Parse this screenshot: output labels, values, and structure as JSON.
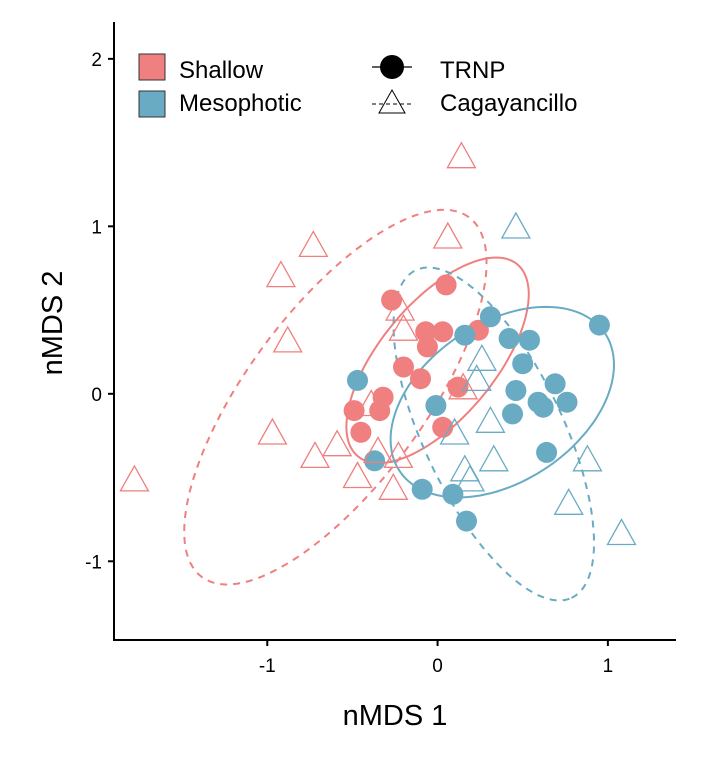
{
  "chart_data": {
    "type": "scatter",
    "title": "",
    "xlabel": "nMDS 1",
    "ylabel": "nMDS 2",
    "xlim": [
      -1.9,
      1.4
    ],
    "ylim": [
      -1.47,
      2.22
    ],
    "x_ticks": [
      {
        "value": -1,
        "label": "-1"
      },
      {
        "value": 0,
        "label": "0"
      },
      {
        "value": 1,
        "label": "1"
      }
    ],
    "y_ticks": [
      {
        "value": -1,
        "label": "-1"
      },
      {
        "value": 0,
        "label": "0"
      },
      {
        "value": 1,
        "label": "1"
      },
      {
        "value": 2,
        "label": "2"
      }
    ],
    "grid": false,
    "legend_placement": "top-left",
    "legend": {
      "depth": [
        {
          "name": "Shallow",
          "color": "#f07f7f"
        },
        {
          "name": "Mesophotic",
          "color": "#6aabc4"
        }
      ],
      "site": [
        {
          "name": "TRNP",
          "shape": "filled-circle",
          "line": "solid"
        },
        {
          "name": "Cagayancillo",
          "shape": "open-triangle",
          "line": "dashed"
        }
      ]
    },
    "series": [
      {
        "depth": "Shallow",
        "site": "TRNP",
        "color": "#f07f7f",
        "marker": "filled-circle",
        "points": [
          [
            0.05,
            0.65
          ],
          [
            -0.27,
            0.56
          ],
          [
            0.24,
            0.38
          ],
          [
            -0.07,
            0.37
          ],
          [
            0.03,
            0.37
          ],
          [
            -0.06,
            0.28
          ],
          [
            -0.2,
            0.16
          ],
          [
            -0.1,
            0.09
          ],
          [
            0.12,
            0.04
          ],
          [
            -0.32,
            -0.02
          ],
          [
            -0.34,
            -0.1
          ],
          [
            -0.49,
            -0.1
          ],
          [
            -0.45,
            -0.23
          ],
          [
            0.03,
            -0.2
          ]
        ]
      },
      {
        "depth": "Mesophotic",
        "site": "TRNP",
        "color": "#6aabc4",
        "marker": "filled-circle",
        "points": [
          [
            0.31,
            0.46
          ],
          [
            0.16,
            0.35
          ],
          [
            0.42,
            0.33
          ],
          [
            0.54,
            0.32
          ],
          [
            0.95,
            0.41
          ],
          [
            0.5,
            0.18
          ],
          [
            -0.47,
            0.08
          ],
          [
            0.46,
            0.02
          ],
          [
            0.69,
            0.06
          ],
          [
            0.59,
            -0.05
          ],
          [
            0.62,
            -0.08
          ],
          [
            0.76,
            -0.05
          ],
          [
            0.44,
            -0.12
          ],
          [
            -0.01,
            -0.07
          ],
          [
            -0.37,
            -0.4
          ],
          [
            0.64,
            -0.35
          ],
          [
            -0.09,
            -0.57
          ],
          [
            0.09,
            -0.6
          ],
          [
            0.17,
            -0.76
          ]
        ]
      },
      {
        "depth": "Shallow",
        "site": "Cagayancillo",
        "color": "#f07f7f",
        "marker": "open-triangle",
        "points": [
          [
            0.14,
            1.41
          ],
          [
            -0.73,
            0.88
          ],
          [
            0.06,
            0.93
          ],
          [
            -0.92,
            0.7
          ],
          [
            -0.88,
            0.31
          ],
          [
            -0.22,
            0.5
          ],
          [
            -0.2,
            0.38
          ],
          [
            0.15,
            0.03
          ],
          [
            -0.39,
            -0.07
          ],
          [
            -0.97,
            -0.24
          ],
          [
            -0.59,
            -0.31
          ],
          [
            -0.72,
            -0.38
          ],
          [
            -0.35,
            -0.35
          ],
          [
            -0.23,
            -0.38
          ],
          [
            -0.47,
            -0.5
          ],
          [
            -0.26,
            -0.57
          ],
          [
            -1.78,
            -0.52
          ]
        ]
      },
      {
        "depth": "Mesophotic",
        "site": "Cagayancillo",
        "color": "#6aabc4",
        "marker": "open-triangle",
        "points": [
          [
            0.46,
            0.99
          ],
          [
            0.26,
            0.2
          ],
          [
            0.23,
            0.08
          ],
          [
            0.31,
            -0.17
          ],
          [
            0.1,
            -0.24
          ],
          [
            0.33,
            -0.4
          ],
          [
            0.16,
            -0.46
          ],
          [
            0.19,
            -0.52
          ],
          [
            0.88,
            -0.4
          ],
          [
            0.77,
            -0.66
          ],
          [
            1.08,
            -0.84
          ]
        ]
      }
    ],
    "ellipses": [
      {
        "depth": "Shallow",
        "site": "TRNP",
        "color": "#f07f7f",
        "line": "solid",
        "cx": 0.0,
        "cy": 0.2,
        "rx": 0.74,
        "ry": 0.34,
        "angle_deg": 51
      },
      {
        "depth": "Mesophotic",
        "site": "TRNP",
        "color": "#6aabc4",
        "line": "solid",
        "cx": 0.38,
        "cy": -0.05,
        "rx": 0.73,
        "ry": 0.47,
        "angle_deg": 35
      },
      {
        "depth": "Shallow",
        "site": "Cagayancillo",
        "color": "#f07f7f",
        "line": "dashed",
        "cx": -0.6,
        "cy": -0.02,
        "rx": 1.33,
        "ry": 0.52,
        "angle_deg": 54
      },
      {
        "depth": "Mesophotic",
        "site": "Cagayancillo",
        "color": "#6aabc4",
        "line": "dashed",
        "cx": 0.33,
        "cy": -0.24,
        "rx": 1.08,
        "ry": 0.41,
        "angle_deg": -65
      }
    ]
  }
}
